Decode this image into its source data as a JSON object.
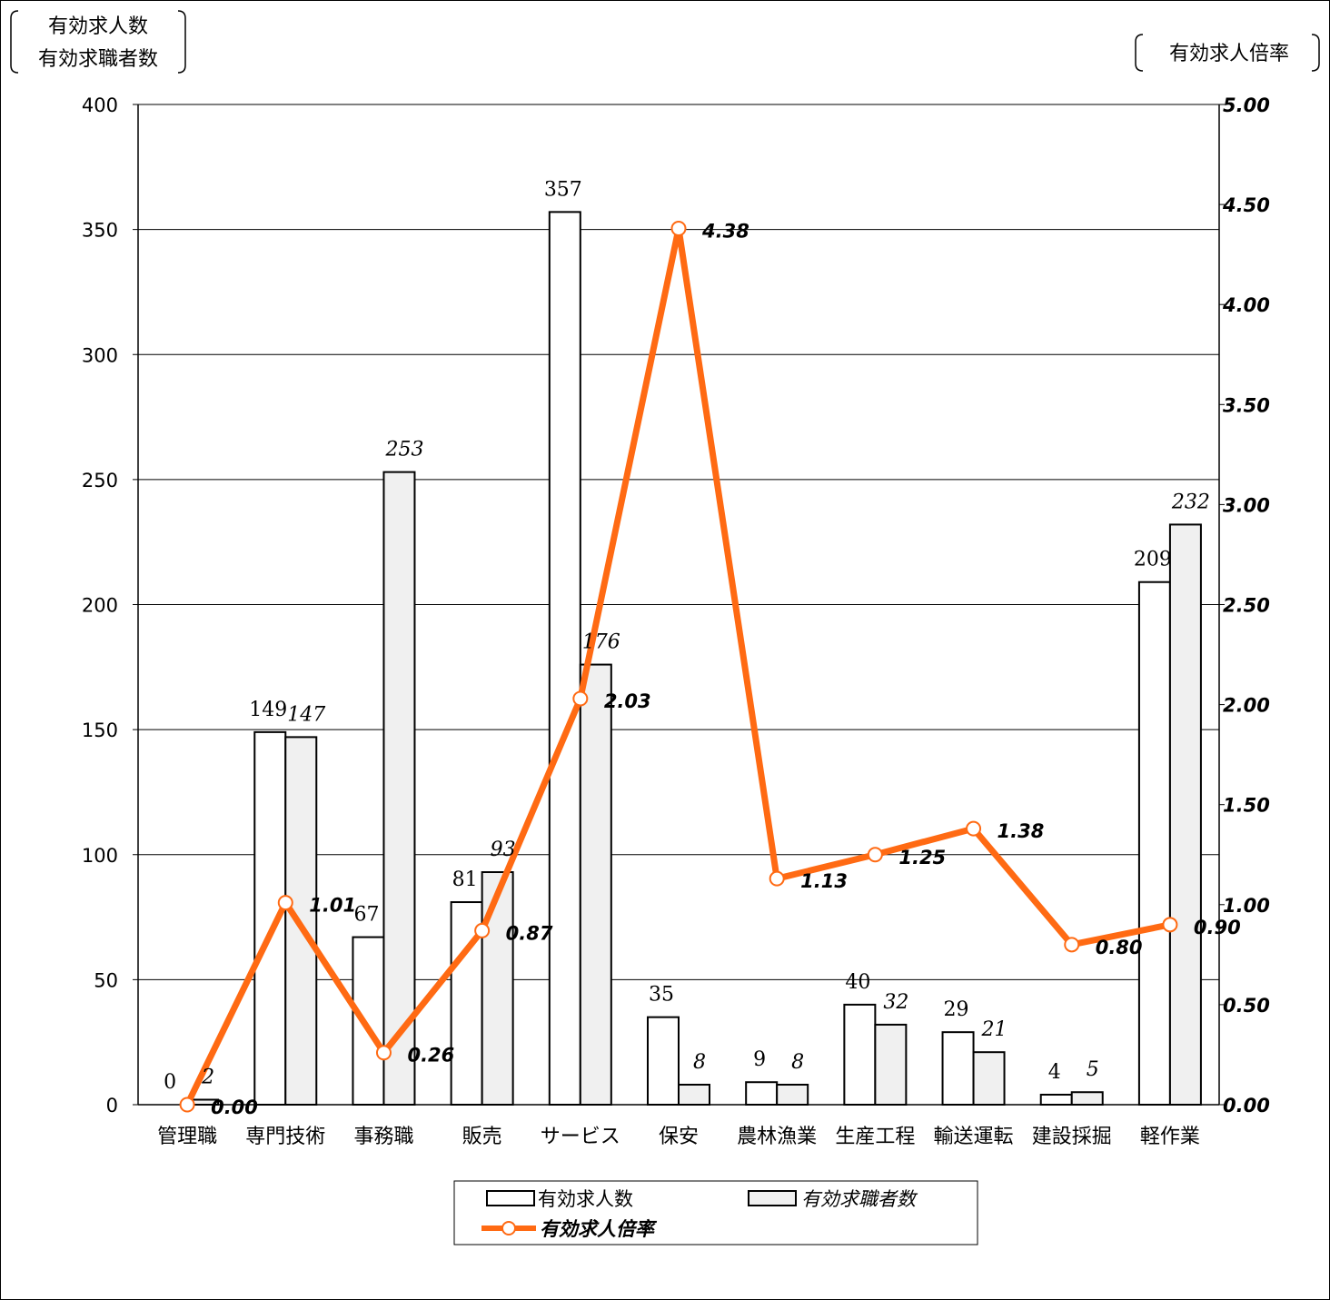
{
  "chart_data": {
    "type": "bar",
    "left_axis_title": [
      "有効求人数",
      "有効求職者数"
    ],
    "right_axis_title": "有効求人倍率",
    "categories": [
      "管理職",
      "専門技術",
      "事務職",
      "販売",
      "サービス",
      "保安",
      "農林漁業",
      "生産工程",
      "輸送運転",
      "建設採掘",
      "軽作業"
    ],
    "series": [
      {
        "name": "有効求人数",
        "type": "bar",
        "axis": "left",
        "values": [
          0,
          149,
          67,
          81,
          357,
          35,
          9,
          40,
          29,
          4,
          209
        ],
        "color": "#ffffff"
      },
      {
        "name": "有効求職者数",
        "type": "bar",
        "axis": "left",
        "values": [
          2,
          147,
          253,
          93,
          176,
          8,
          8,
          32,
          21,
          5,
          232
        ],
        "color": "#f0f0f0"
      },
      {
        "name": "有効求人倍率",
        "type": "line",
        "axis": "right",
        "values": [
          0.0,
          1.01,
          0.26,
          0.87,
          2.03,
          4.38,
          1.13,
          1.25,
          1.38,
          0.8,
          0.9
        ],
        "color": "#ff6a13"
      }
    ],
    "left_axis": {
      "ylim": [
        0,
        400
      ],
      "ticks": [
        "0",
        "50",
        "100",
        "150",
        "200",
        "250",
        "300",
        "350",
        "400"
      ]
    },
    "right_axis": {
      "ylim": [
        0,
        5
      ],
      "ticks": [
        "0.00",
        "0.50",
        "1.00",
        "1.50",
        "2.00",
        "2.50",
        "3.00",
        "3.50",
        "4.00",
        "4.50",
        "5.00"
      ]
    },
    "grid": true,
    "legend_position": "bottom"
  }
}
